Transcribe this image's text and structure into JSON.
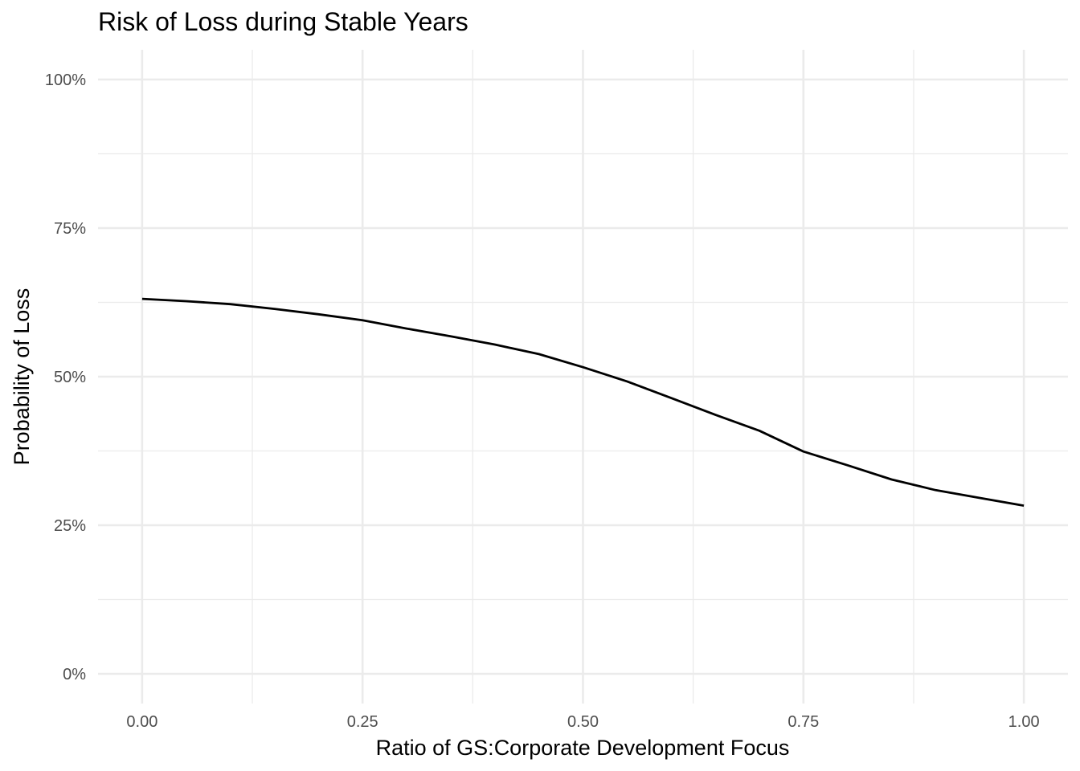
{
  "chart_data": {
    "type": "line",
    "title": "Risk of Loss during Stable Years",
    "xlabel": "Ratio of GS:Corporate Development Focus",
    "ylabel": "Probability of Loss",
    "xlim": [
      -0.05,
      1.05
    ],
    "ylim": [
      -0.05,
      1.05
    ],
    "x_ticks": [
      0,
      0.25,
      0.5,
      0.75,
      1
    ],
    "x_tick_labels": [
      "0.00",
      "0.25",
      "0.50",
      "0.75",
      "1.00"
    ],
    "y_ticks": [
      0,
      0.25,
      0.5,
      0.75,
      1
    ],
    "y_tick_labels": [
      "0%",
      "25%",
      "50%",
      "75%",
      "100%"
    ],
    "grid": true,
    "series": [
      {
        "x": [
          0.0,
          0.05,
          0.1,
          0.15,
          0.2,
          0.25,
          0.3,
          0.35,
          0.4,
          0.45,
          0.5,
          0.55,
          0.6,
          0.65,
          0.7,
          0.75,
          0.8,
          0.85,
          0.9,
          0.95,
          1.0
        ],
        "y": [
          0.631,
          0.627,
          0.622,
          0.614,
          0.605,
          0.595,
          0.581,
          0.568,
          0.554,
          0.538,
          0.516,
          0.492,
          0.464,
          0.436,
          0.409,
          0.374,
          0.351,
          0.327,
          0.309,
          0.296,
          0.283
        ],
        "color": "#000000"
      }
    ]
  }
}
